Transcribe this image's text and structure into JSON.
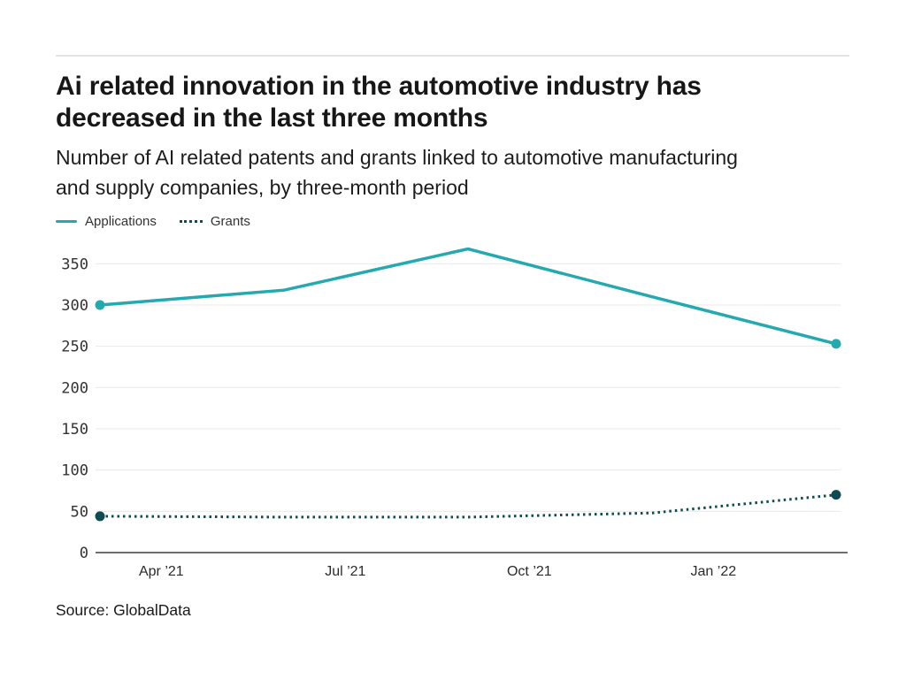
{
  "chart_data": {
    "type": "line",
    "title": "Ai related innovation in the automotive industry has decreased in the last three months",
    "subtitle": "Number of AI related patents and grants linked to automotive manufacturing and supply companies, by three-month period",
    "source": "Source: GlobalData",
    "x_tick_labels": [
      "Apr ’21",
      "Jul ’21",
      "Oct ’21",
      "Jan ’22"
    ],
    "x_tick_months": [
      1,
      4,
      7,
      10
    ],
    "point_months": [
      0,
      3,
      6,
      9,
      12
    ],
    "y_ticks": [
      0,
      50,
      100,
      150,
      200,
      250,
      300,
      350
    ],
    "ylim": [
      0,
      370
    ],
    "grid": "horizontal",
    "legend_position": "top-left",
    "series": [
      {
        "name": "Applications",
        "line_style": "solid",
        "color": "#24A9AF",
        "values": [
          300,
          318,
          368,
          310,
          253
        ],
        "markers": "first-last"
      },
      {
        "name": "Grants",
        "line_style": "dotted",
        "color": "#0E4C52",
        "values": [
          44,
          43,
          43,
          48,
          70
        ],
        "markers": "first-last"
      }
    ],
    "axis_colors": {
      "gridline": "#EAEAEA",
      "baseline": "#6E6E6E",
      "tick_text": "#333333"
    }
  }
}
